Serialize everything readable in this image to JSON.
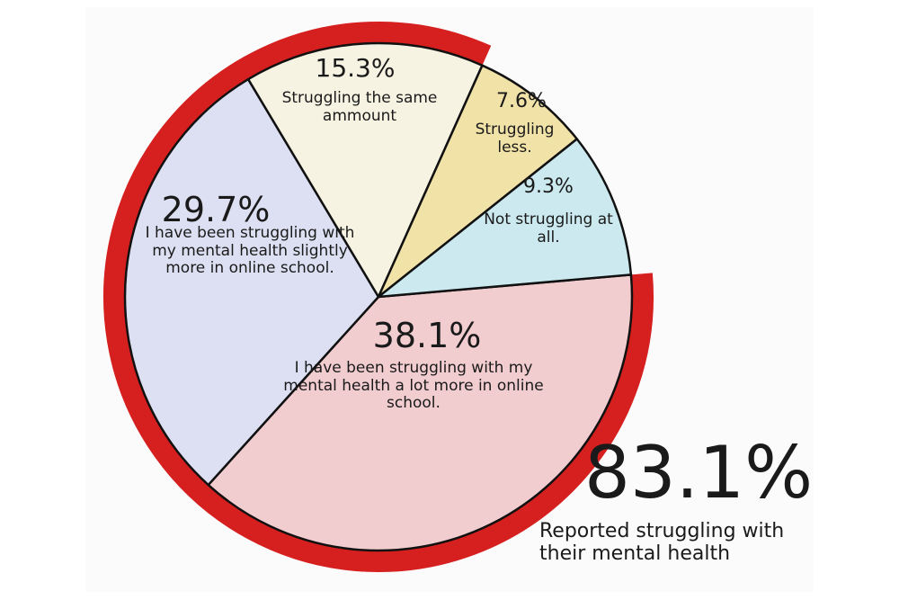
{
  "chart_data": {
    "type": "pie",
    "categories": [
      "I have been struggling with my mental health a lot more in online school.",
      "I have been struggling with my mental health slightly more in online school.",
      "Struggling the same ammount",
      "Struggling less.",
      "Not struggling at all."
    ],
    "values": [
      38.1,
      29.7,
      15.3,
      7.6,
      9.3
    ],
    "value_labels": [
      "38.1%",
      "29.7%",
      "15.3%",
      "7.6%",
      "9.3%"
    ],
    "colors": [
      "#f2cdd0",
      "#dde0f2",
      "#f6f3e2",
      "#f1e2a8",
      "#cbe9ee"
    ],
    "annotation": {
      "value": 83.1,
      "label": "83.1%",
      "text": "Reported struggling with their mental health",
      "color": "#d61f1f"
    }
  }
}
